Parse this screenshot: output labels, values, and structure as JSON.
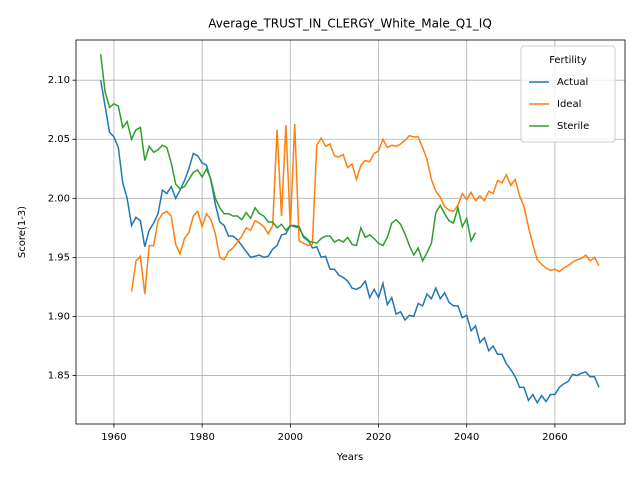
{
  "chart_data": {
    "type": "line",
    "title": "Average_TRUST_IN_CLERGY_White_Male_Q1_IQ",
    "xlabel": "Years",
    "ylabel": "Score(1-3)",
    "legend_title": "Fertility",
    "legend_loc": "upper right",
    "grid": true,
    "xlim": [
      1951.4,
      2075.9
    ],
    "ylim": [
      1.809,
      2.134
    ],
    "xticks": [
      1960,
      1980,
      2000,
      2020,
      2040,
      2060
    ],
    "yticks": [
      {
        "value": 1.85,
        "label": "1.85"
      },
      {
        "value": 1.9,
        "label": "1.90"
      },
      {
        "value": 1.95,
        "label": "1.95"
      },
      {
        "value": 2.0,
        "label": "2.00"
      },
      {
        "value": 2.05,
        "label": "2.05"
      },
      {
        "value": 2.1,
        "label": "2.10"
      }
    ],
    "x": [
      1957,
      1958,
      1959,
      1960,
      1961,
      1962,
      1963,
      1964,
      1965,
      1966,
      1967,
      1968,
      1969,
      1970,
      1971,
      1972,
      1973,
      1974,
      1975,
      1976,
      1977,
      1978,
      1979,
      1980,
      1981,
      1982,
      1983,
      1984,
      1985,
      1986,
      1987,
      1988,
      1989,
      1990,
      1991,
      1992,
      1993,
      1994,
      1995,
      1996,
      1997,
      1998,
      1999,
      2000,
      2001,
      2002,
      2003,
      2004,
      2005,
      2006,
      2007,
      2008,
      2009,
      2010,
      2011,
      2012,
      2013,
      2014,
      2015,
      2016,
      2017,
      2018,
      2019,
      2020,
      2021,
      2022,
      2023,
      2024,
      2025,
      2026,
      2027,
      2028,
      2029,
      2030,
      2031,
      2032,
      2033,
      2034,
      2035,
      2036,
      2037,
      2038,
      2039,
      2040,
      2041,
      2042,
      2043,
      2044,
      2045,
      2046,
      2047,
      2048,
      2049,
      2050,
      2051,
      2052,
      2053,
      2054,
      2055,
      2056,
      2057,
      2058,
      2059,
      2060,
      2061,
      2062,
      2063,
      2064,
      2065,
      2066,
      2067,
      2068,
      2069,
      2070
    ],
    "series": [
      {
        "name": "Actual",
        "color": "#1f77b4",
        "values": [
          2.1,
          2.078,
          2.056,
          2.052,
          2.043,
          2.013,
          2.0,
          1.977,
          1.984,
          1.981,
          1.959,
          1.973,
          1.979,
          1.987,
          2.007,
          2.004,
          2.01,
          2.0,
          2.007,
          2.015,
          2.025,
          2.038,
          2.036,
          2.03,
          2.028,
          2.015,
          1.995,
          1.98,
          1.977,
          1.968,
          1.968,
          1.965,
          1.96,
          1.955,
          1.95,
          1.951,
          1.952,
          1.95,
          1.951,
          1.957,
          1.96,
          1.969,
          1.97,
          1.977,
          1.976,
          1.975,
          1.968,
          1.965,
          1.958,
          1.959,
          1.95,
          1.951,
          1.94,
          1.94,
          1.935,
          1.933,
          1.93,
          1.924,
          1.923,
          1.925,
          1.93,
          1.916,
          1.923,
          1.916,
          1.928,
          1.91,
          1.916,
          1.902,
          1.904,
          1.897,
          1.901,
          1.9,
          1.911,
          1.909,
          1.919,
          1.915,
          1.924,
          1.915,
          1.92,
          1.912,
          1.909,
          1.909,
          1.899,
          1.901,
          1.888,
          1.892,
          1.878,
          1.882,
          1.871,
          1.875,
          1.868,
          1.868,
          1.86,
          1.855,
          1.849,
          1.84,
          1.84,
          1.829,
          1.834,
          1.827,
          1.833,
          1.828,
          1.834,
          1.834,
          1.84,
          1.843,
          1.845,
          1.851,
          1.85,
          1.852,
          1.853,
          1.849,
          1.849,
          1.84
        ]
      },
      {
        "name": "Ideal",
        "color": "#ff7f0e",
        "values": [
          null,
          null,
          null,
          null,
          null,
          null,
          null,
          1.921,
          1.947,
          1.951,
          1.919,
          1.96,
          1.96,
          1.981,
          1.987,
          1.989,
          1.985,
          1.961,
          1.953,
          1.966,
          1.971,
          1.985,
          1.989,
          1.976,
          1.987,
          1.982,
          1.97,
          1.95,
          1.948,
          1.955,
          1.958,
          1.963,
          1.968,
          1.975,
          1.973,
          1.981,
          1.979,
          1.976,
          1.97,
          1.977,
          2.058,
          1.985,
          2.062,
          1.975,
          2.063,
          1.964,
          1.962,
          1.96,
          1.961,
          2.045,
          2.051,
          2.044,
          2.046,
          2.036,
          2.035,
          2.037,
          2.026,
          2.029,
          2.016,
          2.028,
          2.032,
          2.031,
          2.038,
          2.04,
          2.05,
          2.043,
          2.045,
          2.044,
          2.046,
          2.049,
          2.053,
          2.052,
          2.052,
          2.043,
          2.033,
          2.016,
          2.006,
          2.001,
          1.993,
          1.99,
          1.989,
          1.994,
          2.004,
          1.999,
          2.005,
          1.998,
          2.002,
          1.998,
          2.006,
          2.004,
          2.015,
          2.013,
          2.02,
          2.011,
          2.016,
          2.002,
          1.993,
          1.976,
          1.961,
          1.948,
          1.944,
          1.941,
          1.939,
          1.94,
          1.938,
          1.941,
          1.943,
          1.946,
          1.948,
          1.949,
          1.952,
          1.947,
          1.95,
          1.943
        ]
      },
      {
        "name": "Sterile",
        "color": "#2ca02c",
        "values": [
          2.122,
          2.09,
          2.077,
          2.08,
          2.078,
          2.06,
          2.065,
          2.05,
          2.058,
          2.06,
          2.032,
          2.044,
          2.039,
          2.041,
          2.045,
          2.043,
          2.03,
          2.012,
          2.008,
          2.01,
          2.016,
          2.022,
          2.024,
          2.018,
          2.025,
          2.016,
          2.0,
          1.992,
          1.987,
          1.987,
          1.985,
          1.985,
          1.982,
          1.988,
          1.983,
          1.992,
          1.987,
          1.985,
          1.98,
          1.98,
          1.975,
          1.978,
          1.973,
          1.977,
          1.977,
          1.976,
          1.967,
          1.964,
          1.963,
          1.962,
          1.966,
          1.968,
          1.968,
          1.963,
          1.965,
          1.963,
          1.967,
          1.961,
          1.96,
          1.975,
          1.967,
          1.969,
          1.966,
          1.962,
          1.96,
          1.967,
          1.979,
          1.982,
          1.978,
          1.97,
          1.96,
          1.952,
          1.958,
          1.947,
          1.954,
          1.962,
          1.988,
          1.994,
          1.987,
          1.981,
          1.979,
          1.992,
          1.976,
          1.983,
          1.964,
          1.971,
          null,
          null,
          null,
          null,
          null,
          null,
          null,
          null,
          null,
          null,
          null,
          null,
          null,
          null,
          null,
          null,
          null,
          null,
          null,
          null,
          null,
          null,
          null,
          null,
          null,
          null,
          null,
          null
        ]
      }
    ]
  }
}
